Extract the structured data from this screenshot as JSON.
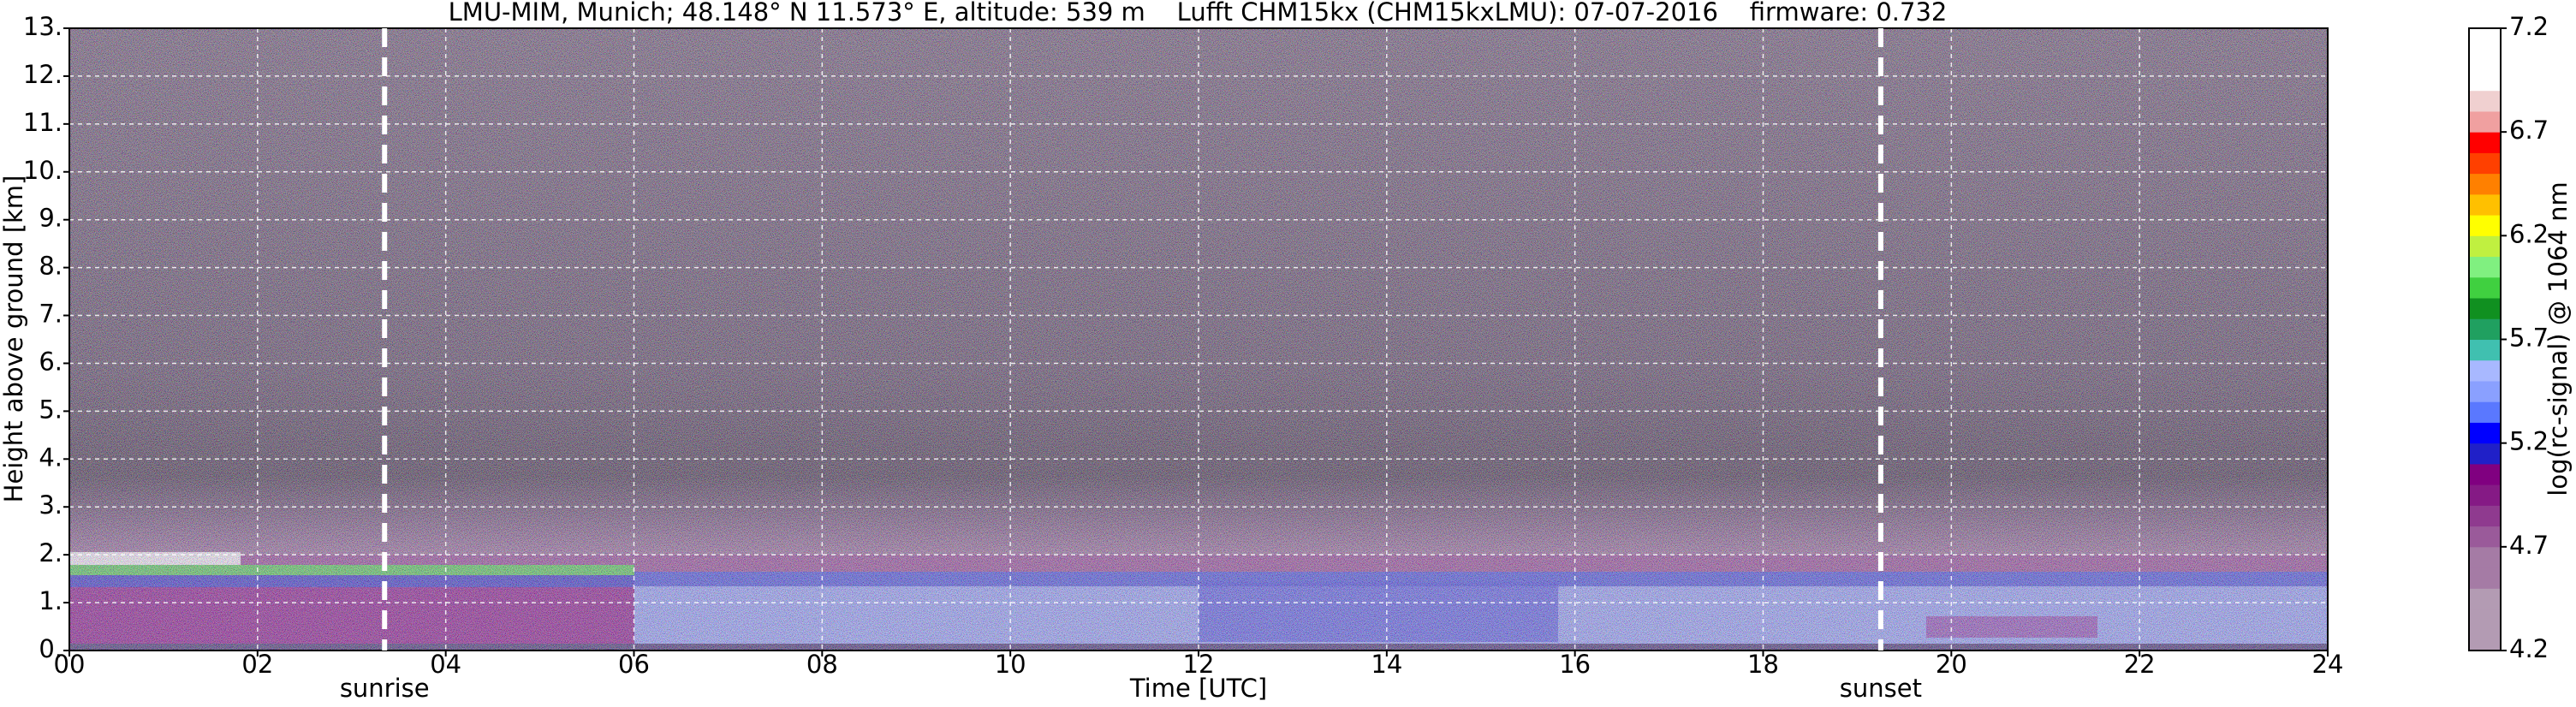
{
  "chart_data": {
    "type": "heatmap",
    "title": "LMU-MIM, Munich; 48.148° N 11.573° E, altitude: 539 m    Lufft CHM15kx (CHM15kxLMU): 07-07-2016    firmware: 0.732",
    "x_label": "Time [UTC]",
    "y_label": "Height above ground [km]",
    "xlim": [
      0,
      24
    ],
    "xticks": [
      {
        "value": 0,
        "label": "00"
      },
      {
        "value": 2,
        "label": "02"
      },
      {
        "value": 4,
        "label": "04"
      },
      {
        "value": 6,
        "label": "06"
      },
      {
        "value": 8,
        "label": "08"
      },
      {
        "value": 10,
        "label": "10"
      },
      {
        "value": 12,
        "label": "12"
      },
      {
        "value": 14,
        "label": "14"
      },
      {
        "value": 16,
        "label": "16"
      },
      {
        "value": 18,
        "label": "18"
      },
      {
        "value": 20,
        "label": "20"
      },
      {
        "value": 22,
        "label": "22"
      },
      {
        "value": 24,
        "label": "24"
      }
    ],
    "ylim": [
      0,
      13
    ],
    "yticks": [
      {
        "value": 0,
        "label": "0."
      },
      {
        "value": 1,
        "label": "1."
      },
      {
        "value": 2,
        "label": "2."
      },
      {
        "value": 3,
        "label": "3."
      },
      {
        "value": 4,
        "label": "4."
      },
      {
        "value": 5,
        "label": "5."
      },
      {
        "value": 6,
        "label": "6."
      },
      {
        "value": 7,
        "label": "7."
      },
      {
        "value": 8,
        "label": "8."
      },
      {
        "value": 9,
        "label": "9."
      },
      {
        "value": 10,
        "label": "10."
      },
      {
        "value": 11,
        "label": "11."
      },
      {
        "value": 12,
        "label": "12."
      },
      {
        "value": 13,
        "label": "13."
      }
    ],
    "grid": true,
    "annotations": [
      {
        "label": "sunrise",
        "x": 3.35
      },
      {
        "label": "sunset",
        "x": 19.25
      }
    ],
    "colorbar": {
      "label": "log(rc-signal) @ 1064 nm",
      "lim": [
        4.2,
        7.2
      ],
      "ticks": [
        4.2,
        4.7,
        5.2,
        5.7,
        6.2,
        6.7,
        7.2
      ],
      "levels": [
        4.2,
        4.3,
        4.4,
        4.5,
        4.6,
        4.7,
        4.8,
        4.9,
        5.0,
        5.1,
        5.2,
        5.3,
        5.4,
        5.5,
        5.6,
        5.7,
        5.8,
        5.9,
        6.0,
        6.1,
        6.2,
        6.3,
        6.4,
        6.5,
        6.6,
        6.7,
        6.8,
        6.9,
        7.0,
        7.1,
        7.2
      ],
      "colors": [
        "#b39bb3",
        "#b39bb3",
        "#b39bb3",
        "#a57ba5",
        "#a57ba5",
        "#9a5a9a",
        "#8f3a8f",
        "#851a85",
        "#800080",
        "#2020c8",
        "#0000ff",
        "#5a78ff",
        "#8aa0ff",
        "#a8b8ff",
        "#40c0b0",
        "#20a060",
        "#109020",
        "#40d040",
        "#80f080",
        "#c0f040",
        "#ffff00",
        "#ffc000",
        "#ff8000",
        "#ff4000",
        "#ff0000",
        "#f0a0a0",
        "#f0d0d0",
        "#ffffff",
        "#ffffff",
        "#ffffff"
      ]
    }
  }
}
